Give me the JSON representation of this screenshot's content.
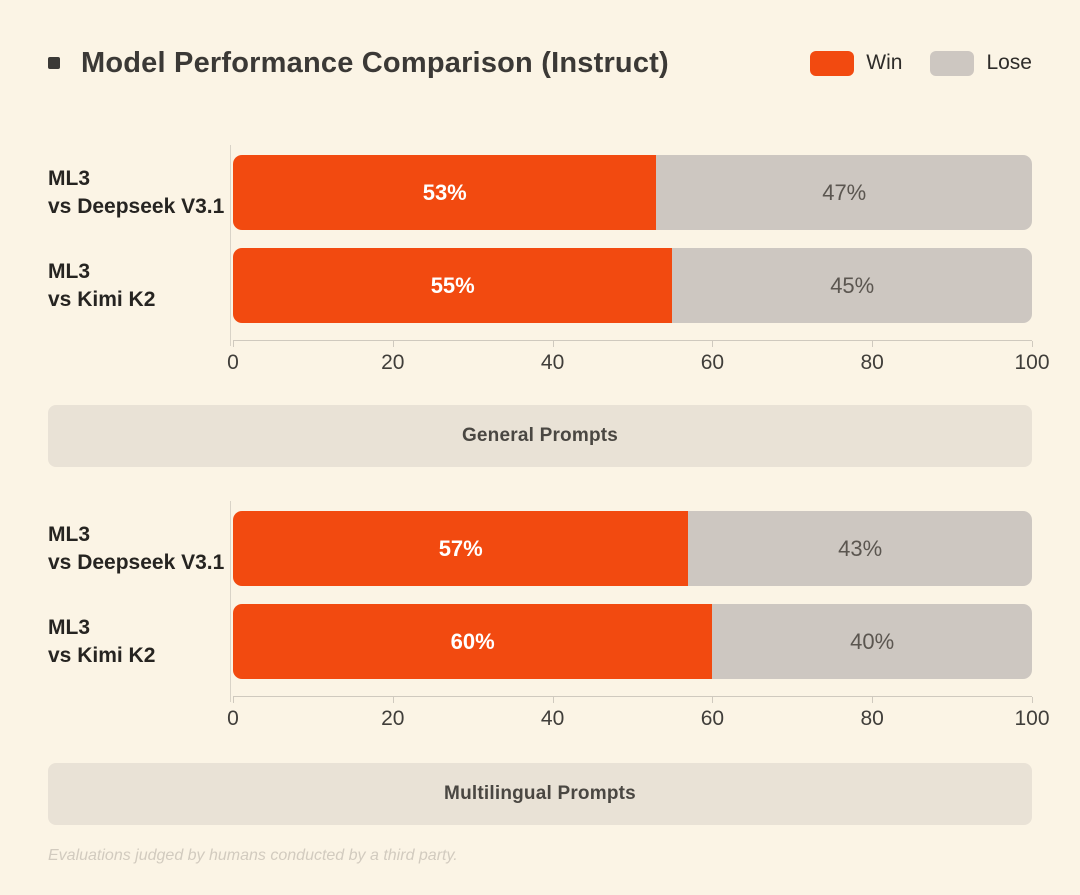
{
  "title": {
    "text": "Model Performance Comparison (Instruct)",
    "bullet_icon": "square-bullet"
  },
  "legend": [
    {
      "label": "Win",
      "color": "#F24A10"
    },
    {
      "label": "Lose",
      "color": "#CDC7C1"
    }
  ],
  "colors": {
    "background": "#FBF4E5",
    "win": "#F24A10",
    "lose": "#CDC7C1",
    "band_background": "#E9E2D6",
    "axis_line": "#CFC9BE"
  },
  "chart_data": [
    {
      "type": "bar",
      "orientation": "horizontal",
      "stacked": true,
      "section_label": "General Prompts",
      "categories": [
        [
          "ML3",
          "vs Deepseek V3.1"
        ],
        [
          "ML3",
          "vs Kimi K2"
        ]
      ],
      "series": [
        {
          "name": "Win",
          "values": [
            53,
            55
          ]
        },
        {
          "name": "Lose",
          "values": [
            47,
            45
          ]
        }
      ],
      "value_suffix": "%",
      "xlim": [
        0,
        100
      ],
      "xticks": [
        0,
        20,
        40,
        60,
        80,
        100
      ],
      "grid": false,
      "legend_position": "top-right"
    },
    {
      "type": "bar",
      "orientation": "horizontal",
      "stacked": true,
      "section_label": "Multilingual Prompts",
      "categories": [
        [
          "ML3",
          "vs Deepseek V3.1"
        ],
        [
          "ML3",
          "vs Kimi K2"
        ]
      ],
      "series": [
        {
          "name": "Win",
          "values": [
            57,
            60
          ]
        },
        {
          "name": "Lose",
          "values": [
            43,
            40
          ]
        }
      ],
      "value_suffix": "%",
      "xlim": [
        0,
        100
      ],
      "xticks": [
        0,
        20,
        40,
        60,
        80,
        100
      ],
      "grid": false,
      "legend_position": "none"
    }
  ],
  "footer": "Evaluations judged by humans conducted by a third party."
}
